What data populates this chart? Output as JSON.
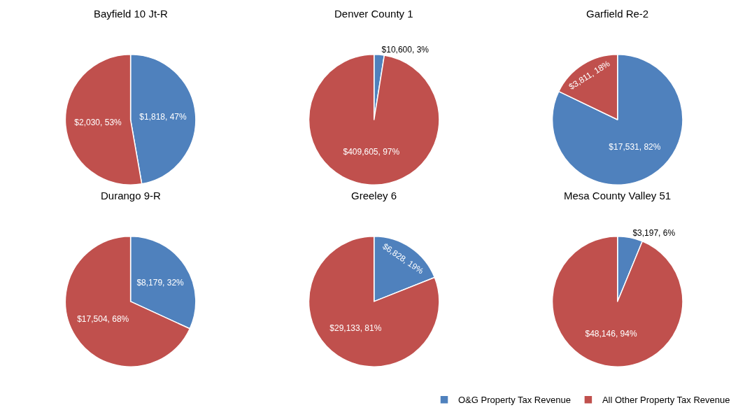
{
  "chart_data": [
    {
      "type": "pie",
      "title": "Bayfield 10 Jt-R",
      "categories": [
        "O&G Property Tax Revenue",
        "All Other Property Tax Revenue"
      ],
      "values": [
        1818,
        2030
      ],
      "colors": [
        "#4f81bd",
        "#c0504d"
      ],
      "value_labels": [
        "$1,818, 47%",
        "$2,030, 53%"
      ],
      "legend": "bottom right"
    },
    {
      "type": "pie",
      "title": "Denver County 1",
      "categories": [
        null,
        null
      ],
      "values": [
        10600,
        409605
      ],
      "colors": [
        "#4f81bd",
        "#c0504d"
      ],
      "value_labels": [
        "$10,600, 3%",
        "$409,605, 97%"
      ]
    },
    {
      "type": "pie",
      "title": "Garfield Re-2",
      "categories": [
        null,
        null
      ],
      "values": [
        17531,
        3811
      ],
      "colors": [
        "#4f81bd",
        "#c0504d"
      ],
      "value_labels": [
        "$17,531, 82%",
        "$3,811, 18%"
      ]
    },
    {
      "type": "pie",
      "title": "Durango 9-R",
      "categories": [
        null,
        null
      ],
      "values": [
        8179,
        17504
      ],
      "colors": [
        "#4f81bd",
        "#c0504d"
      ],
      "value_labels": [
        "$8,179, 32%",
        "$17,504, 68%"
      ]
    },
    {
      "type": "pie",
      "title": "Greeley 6",
      "categories": [
        null,
        null
      ],
      "values": [
        6828,
        29133
      ],
      "colors": [
        "#4f81bd",
        "#c0504d"
      ],
      "value_labels": [
        "$6,828, 19%",
        "$29,133, 81%"
      ]
    },
    {
      "type": "pie",
      "title": "Mesa County Valley 51",
      "categories": [
        null,
        null
      ],
      "values": [
        3197,
        48146
      ],
      "colors": [
        "#4f81bd",
        "#c0504d"
      ],
      "value_labels": [
        "$3,197, 6%",
        "$48,146, 94%"
      ]
    }
  ]
}
